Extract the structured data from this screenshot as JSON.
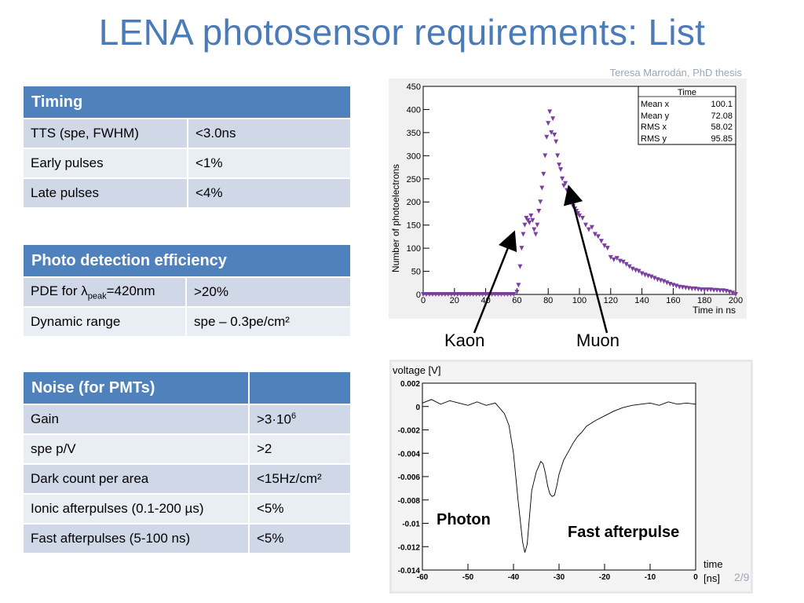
{
  "slide": {
    "title": "LENA photosensor requirements: List",
    "credit": "Teresa Marrodán, PhD  thesis",
    "page_number": "2/9"
  },
  "timing_table": {
    "header": "Timing",
    "rows": [
      {
        "label": "TTS (spe, FWHM)",
        "value": "<3.0ns"
      },
      {
        "label": "Early pulses",
        "value": "<1%"
      },
      {
        "label": "Late pulses",
        "value": "<4%"
      }
    ]
  },
  "pde_table": {
    "header": "Photo detection efficiency",
    "rows": [
      {
        "label_prefix": "PDE for λ",
        "label_sub": "peak",
        "label_suffix": "=420nm",
        "value": ">20%"
      },
      {
        "label": "Dynamic range",
        "value": "spe – 0.3pe/cm²"
      }
    ]
  },
  "noise_table": {
    "header": "Noise (for PMTs)",
    "rows": [
      {
        "label": "Gain",
        "value_base": ">3·10",
        "value_sup": "6"
      },
      {
        "label": "spe p/V",
        "value": ">2"
      },
      {
        "label": "Dark count per area",
        "value": "<15Hz/cm²"
      },
      {
        "label": "Ionic afterpulses (0.1-200 µs)",
        "value": "<5%"
      },
      {
        "label": "Fast afterpulses (5-100 ns)",
        "value": "<5%"
      }
    ]
  },
  "annotations": {
    "kaon": "Kaon",
    "muon": "Muon",
    "photon": "Photon",
    "fast_afterpulse": "Fast afterpulse"
  },
  "colors": {
    "title": "#4a7ab8",
    "table_header": "#4f81bd",
    "row_odd": "#d0d8e8",
    "row_even": "#e9edf4",
    "histogram_marker": "#7b3fa0",
    "arrow_red": "#e8202a"
  },
  "chart_data": [
    {
      "type": "scatter",
      "xlabel": "Time in ns",
      "ylabel": "Number of photoelectrons",
      "xlim": [
        0,
        200
      ],
      "ylim": [
        0,
        450
      ],
      "x_ticks": [
        "0",
        "20",
        "40",
        "60",
        "80",
        "100",
        "120",
        "140",
        "160",
        "180",
        "200"
      ],
      "y_ticks": [
        "0",
        "50",
        "100",
        "150",
        "200",
        "250",
        "300",
        "350",
        "400",
        "450"
      ],
      "stats_box": {
        "title": "Time",
        "rows": [
          {
            "label": "Mean x",
            "value": "100.1"
          },
          {
            "label": "Mean y",
            "value": "72.08"
          },
          {
            "label": "RMS x",
            "value": "58.02"
          },
          {
            "label": "RMS y",
            "value": "95.85"
          }
        ]
      },
      "series": [
        {
          "marker": "down-triangle",
          "x": [
            0,
            2,
            4,
            6,
            8,
            10,
            12,
            14,
            16,
            18,
            20,
            22,
            24,
            26,
            28,
            30,
            32,
            34,
            36,
            38,
            40,
            42,
            44,
            46,
            48,
            50,
            52,
            54,
            56,
            58,
            60,
            61,
            62,
            63,
            64,
            65,
            66,
            67,
            68,
            69,
            70,
            71,
            72,
            73,
            74,
            75,
            76,
            77,
            78,
            79,
            80,
            81,
            82,
            83,
            84,
            85,
            86,
            87,
            88,
            89,
            90,
            91,
            92,
            93,
            94,
            95,
            96,
            97,
            98,
            99,
            100,
            102,
            104,
            106,
            108,
            110,
            112,
            114,
            116,
            118,
            120,
            122,
            124,
            126,
            128,
            130,
            132,
            134,
            136,
            138,
            140,
            142,
            144,
            146,
            148,
            150,
            152,
            154,
            156,
            158,
            160,
            162,
            164,
            166,
            168,
            170,
            172,
            174,
            176,
            178,
            180,
            182,
            184,
            186,
            188,
            190,
            192,
            194,
            196,
            198,
            200
          ],
          "y": [
            0,
            0,
            0,
            0,
            0,
            0,
            0,
            0,
            0,
            0,
            0,
            0,
            0,
            0,
            0,
            0,
            0,
            0,
            0,
            0,
            0,
            0,
            0,
            0,
            0,
            0,
            0,
            0,
            0,
            0,
            5,
            20,
            60,
            100,
            130,
            150,
            165,
            160,
            155,
            170,
            160,
            140,
            130,
            150,
            180,
            200,
            230,
            260,
            300,
            340,
            370,
            395,
            350,
            380,
            345,
            330,
            300,
            280,
            270,
            250,
            235,
            240,
            225,
            210,
            200,
            215,
            190,
            185,
            180,
            175,
            170,
            165,
            150,
            140,
            145,
            130,
            125,
            115,
            105,
            100,
            80,
            75,
            78,
            72,
            70,
            65,
            60,
            55,
            52,
            50,
            45,
            42,
            40,
            38,
            35,
            32,
            30,
            28,
            25,
            22,
            20,
            18,
            16,
            15,
            14,
            13,
            12,
            12,
            11,
            10,
            10,
            10,
            10,
            9,
            9,
            8,
            8,
            7,
            5,
            3,
            0
          ]
        }
      ]
    },
    {
      "type": "line",
      "xlabel": "time [ns]",
      "ylabel": "voltage [V]",
      "xlim": [
        -60,
        0
      ],
      "ylim": [
        -0.014,
        0.002
      ],
      "x_ticks": [
        "-60",
        "-50",
        "-40",
        "-30",
        "-20",
        "-10",
        "0"
      ],
      "y_ticks": [
        "0.002",
        "0",
        "-0.002",
        "-0.004",
        "-0.006",
        "-0.008",
        "-0.01",
        "-0.012",
        "-0.014"
      ],
      "series": [
        {
          "x": [
            -60,
            -58,
            -56,
            -54,
            -52,
            -50,
            -48,
            -46,
            -44,
            -42,
            -41,
            -40,
            -39,
            -38,
            -37.5,
            -37,
            -36.5,
            -36,
            -35,
            -34,
            -33.5,
            -33,
            -32.5,
            -32,
            -31.5,
            -31,
            -30.5,
            -30,
            -29,
            -28,
            -27,
            -26,
            -25,
            -24,
            -22,
            -20,
            -18,
            -16,
            -14,
            -12,
            -10,
            -8,
            -6,
            -4,
            -2,
            0
          ],
          "y": [
            0.0003,
            0.0006,
            0.0002,
            0.0005,
            0.0003,
            0.0001,
            0.0004,
            0.0001,
            0.0003,
            -0.0006,
            -0.0016,
            -0.004,
            -0.008,
            -0.0116,
            -0.0125,
            -0.0118,
            -0.0095,
            -0.0072,
            -0.0056,
            -0.0047,
            -0.0049,
            -0.0057,
            -0.0068,
            -0.0075,
            -0.0077,
            -0.0076,
            -0.0068,
            -0.0058,
            -0.0046,
            -0.0039,
            -0.0032,
            -0.0026,
            -0.0022,
            -0.0017,
            -0.0012,
            -0.0008,
            -0.0004,
            -0.0001,
            0.0001,
            0.0002,
            0.0003,
            0.0001,
            0.0004,
            0.0002,
            0.0003,
            0.0002
          ]
        }
      ]
    }
  ]
}
